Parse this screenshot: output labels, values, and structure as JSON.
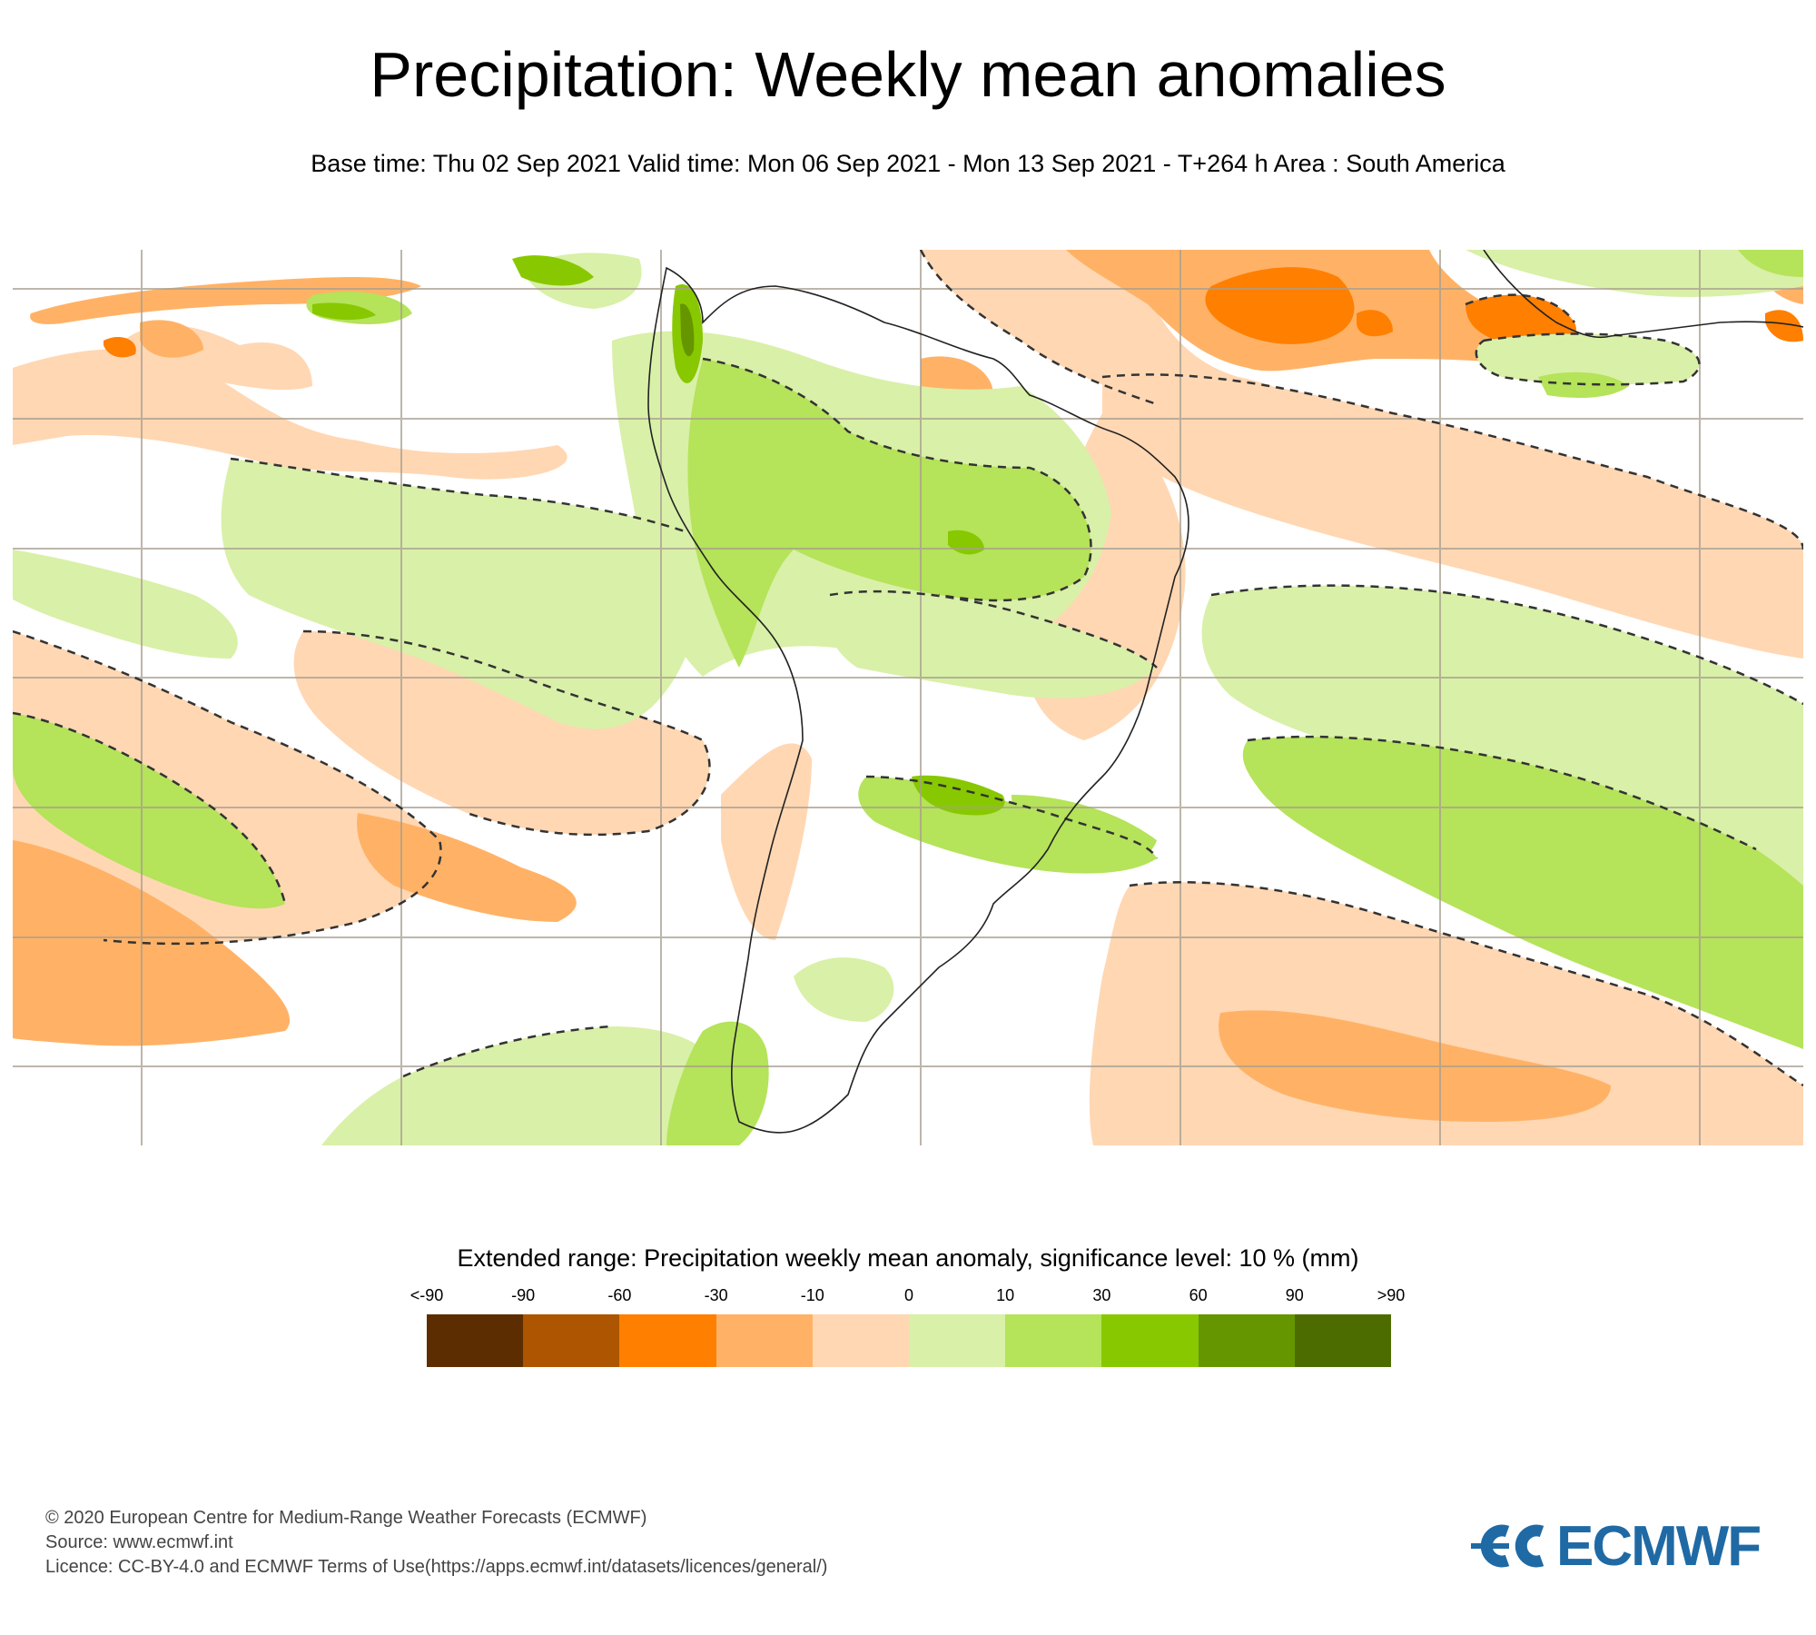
{
  "header": {
    "title": "Precipitation: Weekly mean anomalies",
    "subtitle": "Base time: Thu 02 Sep 2021 Valid time: Mon 06 Sep 2021 - Mon 13 Sep 2021 - T+264 h Area : South America"
  },
  "map": {
    "area": "South America",
    "field": "Precipitation weekly mean anomaly",
    "significance_contour": "dashed",
    "highlights": [
      {
        "region": "Amazon basin / northern South America",
        "category": "10 to 30"
      },
      {
        "region": "Southern Brazil / Uruguay",
        "category": "30 to 60"
      },
      {
        "region": "Tropical North Atlantic",
        "category": "-60 to -30"
      },
      {
        "region": "South-east Pacific",
        "category": "-30 to -10"
      },
      {
        "region": "South Atlantic",
        "category": "10 to 30"
      }
    ]
  },
  "legend": {
    "title": "Extended range: Precipitation weekly mean anomaly, significance level: 10 % (mm)",
    "labels": [
      "<-90",
      "-90",
      "-60",
      "-30",
      "-10",
      "0",
      "10",
      "30",
      "60",
      "90",
      ">90"
    ],
    "colors": [
      "#5c2d00",
      "#ad5500",
      "#ff7f00",
      "#ffb266",
      "#ffd7b3",
      "#d9f0a8",
      "#b5e35a",
      "#88c800",
      "#659600",
      "#4d6c00"
    ]
  },
  "footer": {
    "copyright": "© 2020 European Centre for Medium-Range Weather Forecasts (ECMWF)",
    "source": "Source: www.ecmwf.int",
    "licence": "Licence: CC-BY-4.0 and ECMWF Terms of Use(https://apps.ecmwf.int/datasets/licences/general/)"
  },
  "logo": {
    "text": "ECMWF",
    "color": "#1f6aa5"
  }
}
